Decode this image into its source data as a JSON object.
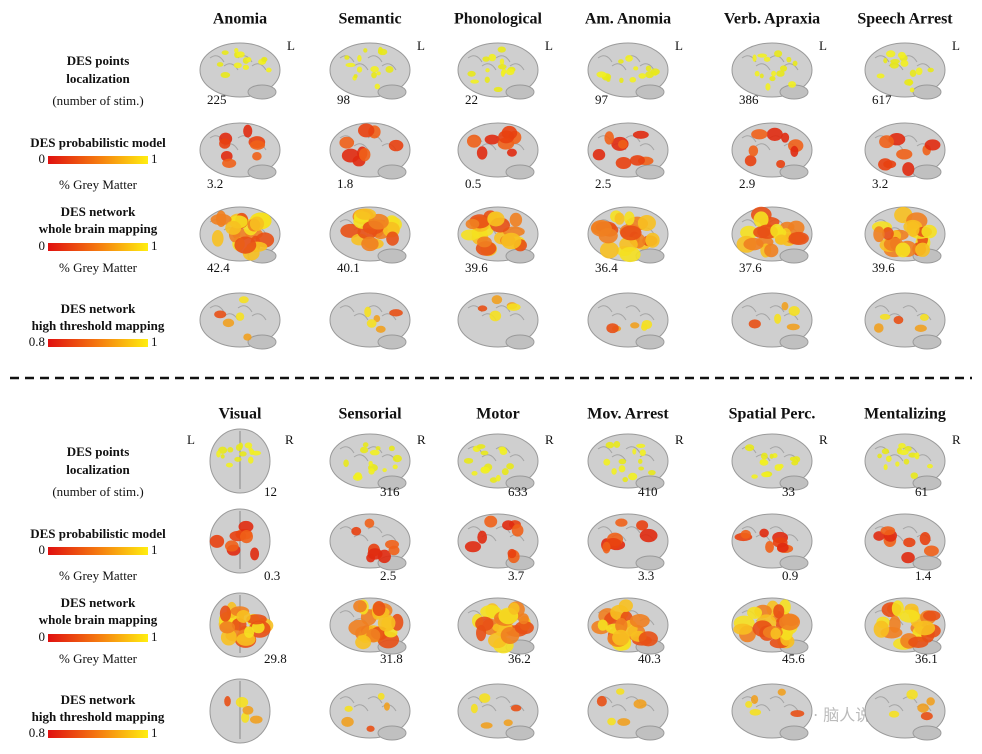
{
  "sections": [
    {
      "rows": [
        {
          "label": [
            "DES points",
            "localization"
          ],
          "note": "(number of stim.)"
        },
        {
          "label": [
            "DES probabilistic model"
          ],
          "scale": [
            "0",
            "1"
          ],
          "note": "% Grey Matter"
        },
        {
          "label": [
            "DES network",
            "whole brain mapping"
          ],
          "scale": [
            "0",
            "1"
          ],
          "note": "% Grey Matter"
        },
        {
          "label": [
            "DES network",
            "high threshold mapping"
          ],
          "scale": [
            "0.8",
            "1"
          ]
        }
      ],
      "columns": [
        {
          "title": "Anomia",
          "sides": [
            "L"
          ],
          "values": [
            225,
            3.2,
            42.4
          ]
        },
        {
          "title": "Semantic",
          "sides": [
            "L"
          ],
          "values": [
            98,
            1.8,
            40.1
          ]
        },
        {
          "title": "Phonological",
          "sides": [
            "L"
          ],
          "values": [
            22,
            0.5,
            39.6
          ]
        },
        {
          "title": "Am. Anomia",
          "sides": [
            "L"
          ],
          "values": [
            97,
            2.5,
            36.4
          ]
        },
        {
          "title": "Verb. Apraxia",
          "sides": [
            "L"
          ],
          "values": [
            386,
            2.9,
            37.6
          ]
        },
        {
          "title": "Speech Arrest",
          "sides": [
            "L"
          ],
          "values": [
            617,
            3.2,
            39.6
          ]
        }
      ]
    },
    {
      "rows": [
        {
          "label": [
            "DES points",
            "localization"
          ],
          "note": "(number of stim.)"
        },
        {
          "label": [
            "DES probabilistic model"
          ],
          "scale": [
            "0",
            "1"
          ],
          "note": "% Grey Matter"
        },
        {
          "label": [
            "DES network",
            "whole brain mapping"
          ],
          "scale": [
            "0",
            "1"
          ],
          "note": "% Grey Matter"
        },
        {
          "label": [
            "DES network",
            "high threshold mapping"
          ],
          "scale": [
            "0.8",
            "1"
          ]
        }
      ],
      "columns": [
        {
          "title": "Visual",
          "sides": [
            "L",
            "R"
          ],
          "values": [
            12,
            0.3,
            29.8
          ]
        },
        {
          "title": "Sensorial",
          "sides": [
            "R"
          ],
          "values": [
            316,
            2.5,
            31.8
          ]
        },
        {
          "title": "Motor",
          "sides": [
            "R"
          ],
          "values": [
            633,
            3.7,
            36.2
          ]
        },
        {
          "title": "Mov. Arrest",
          "sides": [
            "R"
          ],
          "values": [
            410,
            3.3,
            40.3
          ]
        },
        {
          "title": "Spatial Perc.",
          "sides": [
            "R"
          ],
          "values": [
            33,
            0.9,
            45.6
          ]
        },
        {
          "title": "Mentalizing",
          "sides": [
            "R"
          ],
          "values": [
            61,
            1.4,
            36.1
          ]
        }
      ]
    }
  ],
  "watermark": "公众号 · 脑人说"
}
